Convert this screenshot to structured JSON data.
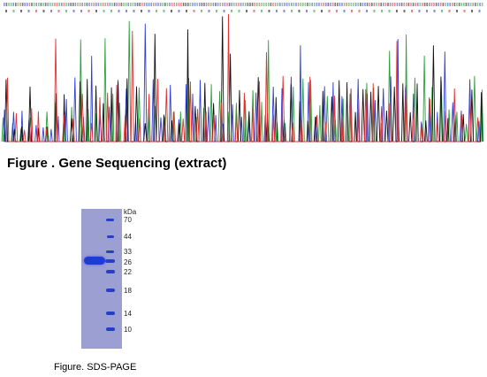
{
  "figure_sequencing": {
    "caption": "Figure . Gene Sequencing (extract)",
    "trace_colors": {
      "A": "#2aa13b",
      "C": "#2f3fd6",
      "G": "#111111",
      "T": "#e33131"
    }
  },
  "figure_sds_page": {
    "caption": "Figure. SDS-PAGE",
    "unit_label": "kDa",
    "markers": [
      "70",
      "44",
      "33",
      "26",
      "22",
      "18",
      "14",
      "10"
    ],
    "gel_color": "#9c9fd2",
    "band_color": "#1d3bd8"
  }
}
